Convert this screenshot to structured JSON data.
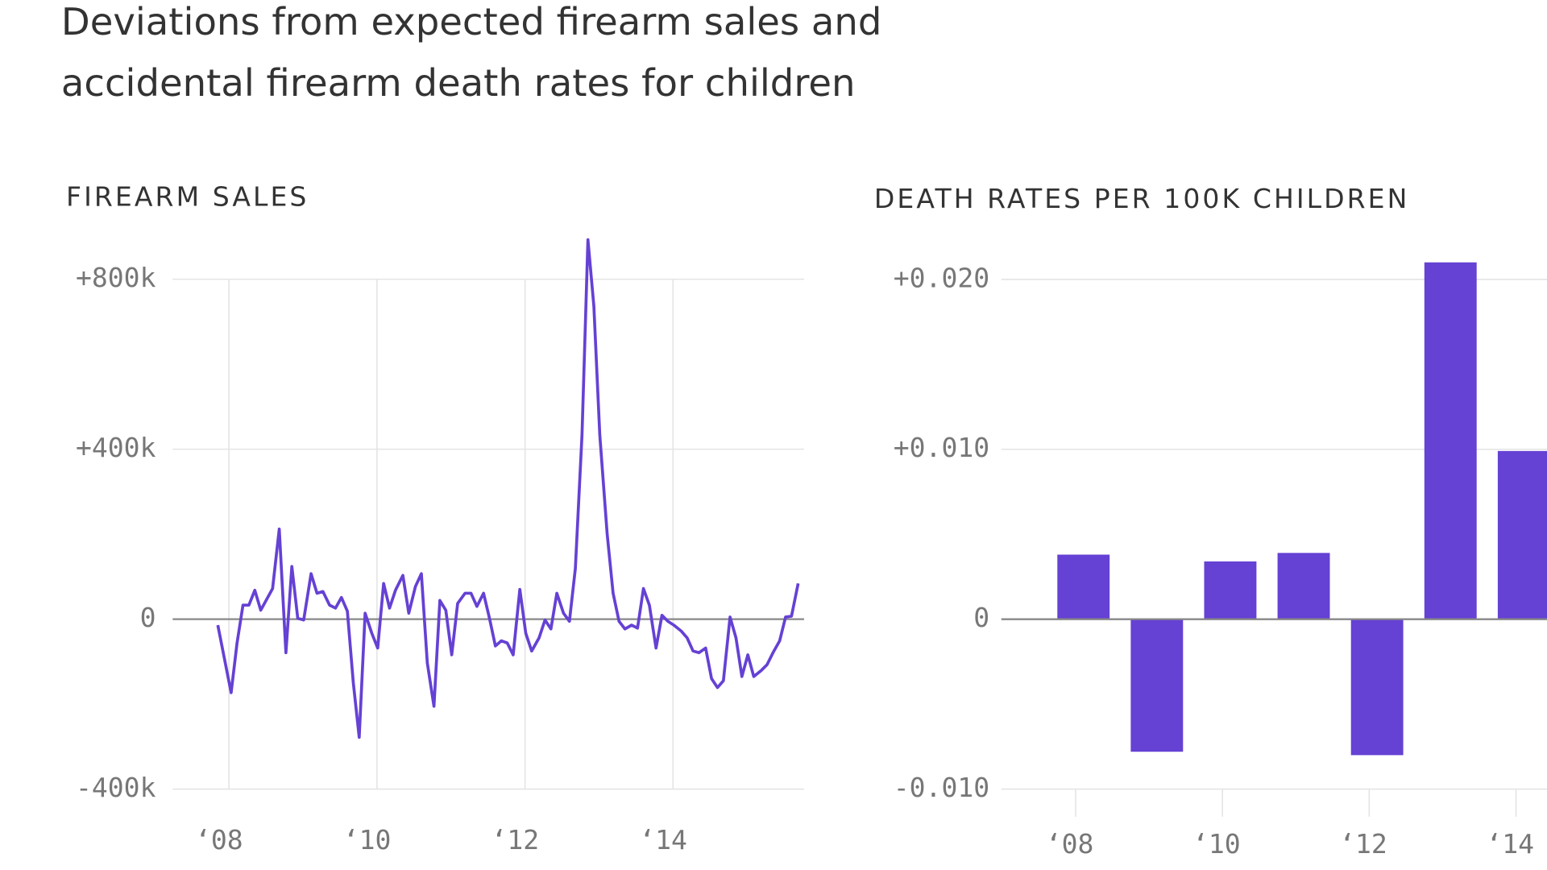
{
  "title_lines": [
    "Deviations from expected firearm sales and",
    "accidental firearm death rates for children"
  ],
  "chart_data": [
    {
      "type": "line",
      "title": "FIREARM SALES",
      "color": "#6541d4",
      "grid": true,
      "x": [
        2007.85,
        2008.03,
        2008.11,
        2008.19,
        2008.27,
        2008.35,
        2008.43,
        2008.59,
        2008.68,
        2008.77,
        2008.85,
        2008.93,
        2009.01,
        2009.11,
        2009.19,
        2009.27,
        2009.36,
        2009.44,
        2009.52,
        2009.6,
        2009.68,
        2009.76,
        2009.84,
        2009.93,
        2010.01,
        2010.09,
        2010.17,
        2010.25,
        2010.35,
        2010.43,
        2010.52,
        2010.6,
        2010.68,
        2010.77,
        2010.85,
        2010.93,
        2011.01,
        2011.09,
        2011.19,
        2011.27,
        2011.35,
        2011.44,
        2011.52,
        2011.6,
        2011.68,
        2011.76,
        2011.84,
        2011.93,
        2012.01,
        2012.09,
        2012.19,
        2012.27,
        2012.35,
        2012.43,
        2012.52,
        2012.6,
        2012.68,
        2012.77,
        2012.85,
        2012.93,
        2013.01,
        2013.11,
        2013.19,
        2013.27,
        2013.35,
        2013.44,
        2013.52,
        2013.6,
        2013.68,
        2013.77,
        2013.85,
        2013.93,
        2014.01,
        2014.11,
        2014.19,
        2014.27,
        2014.35,
        2014.44,
        2014.52,
        2014.6,
        2014.68,
        2014.77,
        2014.85,
        2014.93,
        2015.01,
        2015.09,
        2015.19,
        2015.27,
        2015.35,
        2015.44,
        2015.52,
        2015.6,
        2015.69
      ],
      "values": [
        -14000,
        -173000,
        -56000,
        33000,
        33000,
        68000,
        21000,
        72000,
        212000,
        -79000,
        124000,
        2000,
        -2000,
        107000,
        61000,
        65000,
        33000,
        26000,
        51000,
        19000,
        -149000,
        -278000,
        14000,
        -33000,
        -68000,
        84000,
        26000,
        68000,
        103000,
        14000,
        77000,
        107000,
        -103000,
        -205000,
        44000,
        21000,
        -84000,
        37000,
        61000,
        61000,
        30000,
        61000,
        2000,
        -63000,
        -51000,
        -56000,
        -84000,
        70000,
        -33000,
        -75000,
        -44000,
        -2000,
        -23000,
        61000,
        14000,
        -5000,
        119000,
        434000,
        893000,
        737000,
        434000,
        200000,
        61000,
        -5000,
        -23000,
        -14000,
        -21000,
        72000,
        33000,
        -68000,
        9000,
        -5000,
        -14000,
        -28000,
        -44000,
        -75000,
        -79000,
        -68000,
        -140000,
        -161000,
        -145000,
        5000,
        -44000,
        -135000,
        -84000,
        -135000,
        -121000,
        -107000,
        -79000,
        -51000,
        5000,
        7000,
        84000
      ],
      "xlim": [
        2007.24,
        2015.77
      ],
      "xticks": [
        {
          "value": 2008,
          "label": "‘08"
        },
        {
          "value": 2010,
          "label": "‘10"
        },
        {
          "value": 2012,
          "label": "‘12"
        },
        {
          "value": 2014,
          "label": "‘14"
        }
      ],
      "ylim": [
        -400000,
        900000
      ],
      "yticks": [
        {
          "value": 800000,
          "label": "+800k"
        },
        {
          "value": 400000,
          "label": "+400k"
        },
        0,
        {
          "value": -400000,
          "label": "-400k"
        }
      ]
    },
    {
      "type": "bar",
      "title": "DEATH RATES PER 100K CHILDREN",
      "color": "#6541d4",
      "grid": true,
      "categories": [
        "‘08",
        null,
        "‘10",
        null,
        "‘12",
        null,
        "‘14"
      ],
      "values": [
        0.0038,
        -0.0078,
        0.0034,
        0.0039,
        -0.008,
        0.021,
        0.0099
      ],
      "ylim": [
        -0.01,
        0.021
      ],
      "yticks": [
        {
          "value": 0.02,
          "label": "+0.020"
        },
        {
          "value": 0.01,
          "label": "+0.010"
        },
        0,
        {
          "value": -0.01,
          "label": "-0.010"
        }
      ]
    }
  ]
}
